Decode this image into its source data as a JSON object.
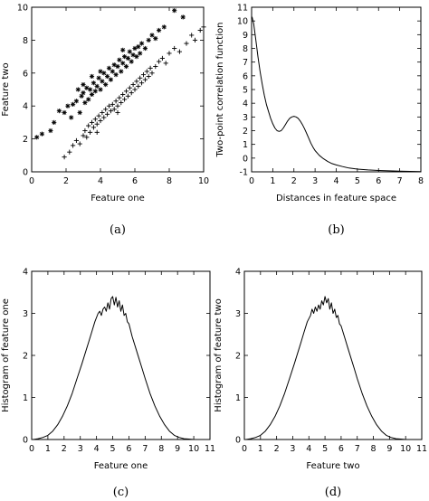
{
  "chart_data": [
    {
      "id": "a",
      "type": "scatter",
      "caption": "(a)",
      "xlabel": "Feature one",
      "ylabel": "Feature two",
      "xlim": [
        0,
        10
      ],
      "ylim": [
        0,
        10
      ],
      "xticks": [
        0,
        2,
        4,
        6,
        8,
        10
      ],
      "yticks": [
        0,
        2,
        4,
        6,
        8,
        10
      ],
      "series": [
        {
          "marker": "star",
          "points": [
            [
              0.3,
              2.1
            ],
            [
              0.6,
              2.3
            ],
            [
              1.1,
              2.5
            ],
            [
              1.3,
              3.0
            ],
            [
              1.6,
              3.7
            ],
            [
              1.9,
              3.6
            ],
            [
              2.1,
              4.0
            ],
            [
              2.3,
              3.3
            ],
            [
              2.4,
              4.1
            ],
            [
              2.6,
              4.3
            ],
            [
              2.8,
              3.6
            ],
            [
              2.9,
              4.6
            ],
            [
              3.0,
              4.8
            ],
            [
              3.1,
              4.2
            ],
            [
              3.2,
              5.1
            ],
            [
              3.3,
              4.4
            ],
            [
              3.4,
              5.0
            ],
            [
              3.5,
              4.7
            ],
            [
              3.6,
              5.4
            ],
            [
              3.7,
              4.9
            ],
            [
              3.8,
              5.2
            ],
            [
              3.9,
              5.7
            ],
            [
              4.0,
              5.0
            ],
            [
              4.1,
              5.5
            ],
            [
              4.2,
              6.0
            ],
            [
              4.3,
              5.3
            ],
            [
              4.4,
              5.8
            ],
            [
              4.5,
              6.3
            ],
            [
              4.6,
              5.6
            ],
            [
              4.7,
              6.1
            ],
            [
              4.8,
              6.5
            ],
            [
              4.9,
              5.9
            ],
            [
              5.0,
              6.4
            ],
            [
              5.1,
              6.8
            ],
            [
              5.2,
              6.1
            ],
            [
              5.3,
              6.6
            ],
            [
              5.4,
              7.0
            ],
            [
              5.5,
              6.4
            ],
            [
              5.6,
              6.9
            ],
            [
              5.7,
              7.3
            ],
            [
              5.8,
              6.7
            ],
            [
              5.9,
              7.1
            ],
            [
              6.0,
              7.5
            ],
            [
              6.1,
              7.0
            ],
            [
              6.2,
              7.6
            ],
            [
              6.3,
              7.2
            ],
            [
              6.4,
              7.8
            ],
            [
              6.6,
              7.5
            ],
            [
              6.8,
              8.0
            ],
            [
              7.0,
              8.3
            ],
            [
              7.2,
              8.1
            ],
            [
              7.4,
              8.6
            ],
            [
              7.7,
              8.8
            ],
            [
              8.3,
              9.8
            ],
            [
              8.8,
              9.4
            ],
            [
              3.5,
              5.8
            ],
            [
              4.0,
              6.1
            ],
            [
              3.0,
              5.3
            ],
            [
              5.3,
              7.4
            ],
            [
              2.7,
              5.0
            ]
          ]
        },
        {
          "marker": "plus",
          "points": [
            [
              1.9,
              0.9
            ],
            [
              2.2,
              1.2
            ],
            [
              2.4,
              1.6
            ],
            [
              2.6,
              1.9
            ],
            [
              2.8,
              1.7
            ],
            [
              3.0,
              2.2
            ],
            [
              3.1,
              2.5
            ],
            [
              3.2,
              2.1
            ],
            [
              3.3,
              2.8
            ],
            [
              3.4,
              2.4
            ],
            [
              3.5,
              3.0
            ],
            [
              3.6,
              2.7
            ],
            [
              3.7,
              3.2
            ],
            [
              3.8,
              2.9
            ],
            [
              3.9,
              3.4
            ],
            [
              4.0,
              3.1
            ],
            [
              4.1,
              3.6
            ],
            [
              4.2,
              3.3
            ],
            [
              4.3,
              3.8
            ],
            [
              4.4,
              3.5
            ],
            [
              4.5,
              4.0
            ],
            [
              4.6,
              3.7
            ],
            [
              4.7,
              4.1
            ],
            [
              4.8,
              3.8
            ],
            [
              4.9,
              4.3
            ],
            [
              5.0,
              4.0
            ],
            [
              5.1,
              4.5
            ],
            [
              5.2,
              4.2
            ],
            [
              5.3,
              4.7
            ],
            [
              5.4,
              4.4
            ],
            [
              5.5,
              4.9
            ],
            [
              5.6,
              4.6
            ],
            [
              5.7,
              5.1
            ],
            [
              5.8,
              4.8
            ],
            [
              5.9,
              5.3
            ],
            [
              6.0,
              5.0
            ],
            [
              6.1,
              5.5
            ],
            [
              6.2,
              5.2
            ],
            [
              6.3,
              5.7
            ],
            [
              6.4,
              5.4
            ],
            [
              6.5,
              5.9
            ],
            [
              6.6,
              5.6
            ],
            [
              6.7,
              6.1
            ],
            [
              6.8,
              5.8
            ],
            [
              6.9,
              6.3
            ],
            [
              7.0,
              6.0
            ],
            [
              7.2,
              6.4
            ],
            [
              7.4,
              6.7
            ],
            [
              7.6,
              6.9
            ],
            [
              7.8,
              6.6
            ],
            [
              8.0,
              7.2
            ],
            [
              8.3,
              7.5
            ],
            [
              8.6,
              7.3
            ],
            [
              9.0,
              7.8
            ],
            [
              9.3,
              8.3
            ],
            [
              9.5,
              8.0
            ],
            [
              9.8,
              8.6
            ],
            [
              10.0,
              8.8
            ],
            [
              3.8,
              2.4
            ],
            [
              5.0,
              3.6
            ]
          ]
        }
      ]
    },
    {
      "id": "b",
      "type": "line",
      "caption": "(b)",
      "xlabel": "Distances in feature space",
      "ylabel": "Two-point correlation function",
      "xlim": [
        0,
        8
      ],
      "ylim": [
        -1,
        11
      ],
      "xticks": [
        0,
        1,
        2,
        3,
        4,
        5,
        6,
        7,
        8
      ],
      "yticks": [
        -1,
        0,
        1,
        2,
        3,
        4,
        5,
        6,
        7,
        8,
        9,
        10,
        11
      ],
      "x": [
        0.02,
        0.1,
        0.2,
        0.3,
        0.4,
        0.5,
        0.6,
        0.7,
        0.8,
        0.9,
        1.0,
        1.1,
        1.2,
        1.3,
        1.4,
        1.5,
        1.6,
        1.7,
        1.8,
        1.9,
        2.0,
        2.1,
        2.2,
        2.3,
        2.4,
        2.5,
        2.6,
        2.7,
        2.8,
        2.9,
        3.0,
        3.2,
        3.4,
        3.6,
        3.8,
        4.0,
        4.3,
        4.6,
        5.0,
        5.5,
        6.0,
        6.5,
        7.0,
        8.0
      ],
      "y": [
        10.3,
        9.8,
        8.6,
        7.4,
        6.3,
        5.4,
        4.6,
        3.9,
        3.4,
        2.9,
        2.5,
        2.2,
        2.0,
        1.95,
        2.0,
        2.2,
        2.45,
        2.7,
        2.9,
        3.0,
        3.05,
        3.0,
        2.9,
        2.7,
        2.45,
        2.15,
        1.8,
        1.45,
        1.1,
        0.8,
        0.55,
        0.2,
        -0.05,
        -0.25,
        -0.4,
        -0.5,
        -0.62,
        -0.72,
        -0.8,
        -0.86,
        -0.9,
        -0.93,
        -0.95,
        -0.98
      ]
    },
    {
      "id": "c",
      "type": "line",
      "caption": "(c)",
      "xlabel": "Feature one",
      "ylabel": "Histogram of feature one",
      "xlim": [
        0,
        11
      ],
      "ylim": [
        0,
        4
      ],
      "xticks": [
        0,
        1,
        2,
        3,
        4,
        5,
        6,
        7,
        8,
        9,
        10,
        11
      ],
      "yticks": [
        0,
        1,
        2,
        3,
        4
      ],
      "x": [
        0.1,
        0.4,
        0.7,
        1.0,
        1.3,
        1.6,
        1.9,
        2.2,
        2.5,
        2.8,
        3.1,
        3.3,
        3.5,
        3.7,
        3.9,
        4.1,
        4.2,
        4.3,
        4.4,
        4.5,
        4.6,
        4.7,
        4.8,
        4.9,
        5.0,
        5.1,
        5.2,
        5.3,
        5.4,
        5.5,
        5.6,
        5.7,
        5.8,
        5.9,
        6.0,
        6.2,
        6.4,
        6.6,
        6.8,
        7.0,
        7.3,
        7.6,
        7.9,
        8.2,
        8.5,
        8.8,
        9.1,
        9.4,
        9.7,
        10.0,
        10.3
      ],
      "y": [
        0.0,
        0.02,
        0.05,
        0.1,
        0.2,
        0.35,
        0.55,
        0.8,
        1.1,
        1.45,
        1.8,
        2.05,
        2.3,
        2.55,
        2.8,
        3.0,
        3.05,
        2.95,
        3.1,
        3.15,
        3.05,
        3.25,
        3.1,
        3.35,
        3.4,
        3.2,
        3.38,
        3.15,
        3.3,
        3.05,
        3.2,
        2.95,
        3.0,
        2.8,
        2.75,
        2.45,
        2.2,
        1.95,
        1.7,
        1.45,
        1.1,
        0.8,
        0.55,
        0.35,
        0.2,
        0.1,
        0.05,
        0.02,
        0.01,
        0.0,
        0.0
      ]
    },
    {
      "id": "d",
      "type": "line",
      "caption": "(d)",
      "xlabel": "Feature two",
      "ylabel": "Histogram of feature two",
      "xlim": [
        0,
        11
      ],
      "ylim": [
        0,
        4
      ],
      "xticks": [
        0,
        1,
        2,
        3,
        4,
        5,
        6,
        7,
        8,
        9,
        10,
        11
      ],
      "yticks": [
        0,
        1,
        2,
        3,
        4
      ],
      "x": [
        0.1,
        0.4,
        0.7,
        1.0,
        1.3,
        1.6,
        1.9,
        2.2,
        2.5,
        2.8,
        3.1,
        3.3,
        3.5,
        3.7,
        3.9,
        4.1,
        4.2,
        4.3,
        4.4,
        4.5,
        4.6,
        4.7,
        4.8,
        4.9,
        5.0,
        5.1,
        5.2,
        5.3,
        5.4,
        5.5,
        5.6,
        5.7,
        5.8,
        5.9,
        6.0,
        6.2,
        6.4,
        6.6,
        6.8,
        7.0,
        7.3,
        7.6,
        7.9,
        8.2,
        8.5,
        8.8,
        9.1,
        9.4,
        9.7,
        10.0,
        10.3
      ],
      "y": [
        0.0,
        0.02,
        0.05,
        0.1,
        0.2,
        0.35,
        0.55,
        0.8,
        1.1,
        1.45,
        1.8,
        2.05,
        2.3,
        2.55,
        2.8,
        2.95,
        3.1,
        3.0,
        3.15,
        3.05,
        3.2,
        3.1,
        3.3,
        3.2,
        3.4,
        3.25,
        3.35,
        3.1,
        3.25,
        3.0,
        3.1,
        2.9,
        2.95,
        2.75,
        2.7,
        2.45,
        2.2,
        1.95,
        1.7,
        1.45,
        1.1,
        0.8,
        0.55,
        0.35,
        0.2,
        0.1,
        0.05,
        0.02,
        0.01,
        0.0,
        0.0
      ]
    }
  ]
}
